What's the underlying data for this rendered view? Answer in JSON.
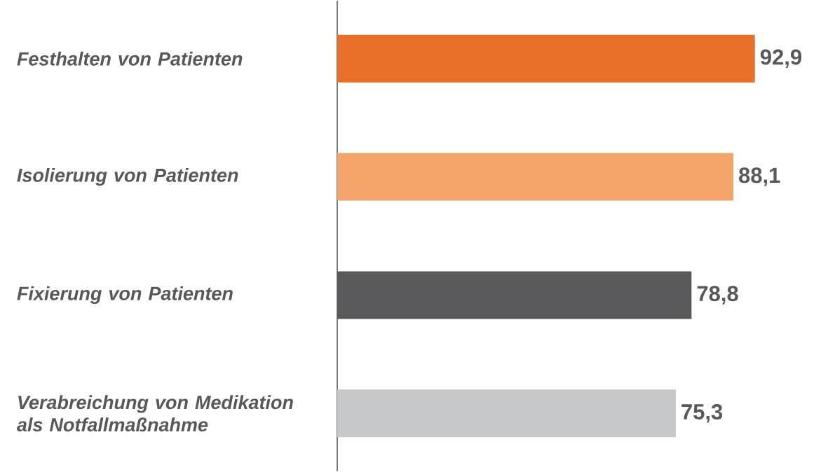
{
  "chart_data": {
    "type": "bar",
    "orientation": "horizontal",
    "categories": [
      "Festhalten von Patienten",
      "Isolierung von Patienten",
      "Fixierung von Patienten",
      "Verabreichung von Medikation als Notfallmaßnahme"
    ],
    "values": [
      92.9,
      88.1,
      78.8,
      75.3
    ],
    "value_labels": [
      "92,9",
      "88,1",
      "78,8",
      "75,3"
    ],
    "colors": [
      "#e97028",
      "#f4a46b",
      "#59595b",
      "#c6c7c9"
    ]
  }
}
